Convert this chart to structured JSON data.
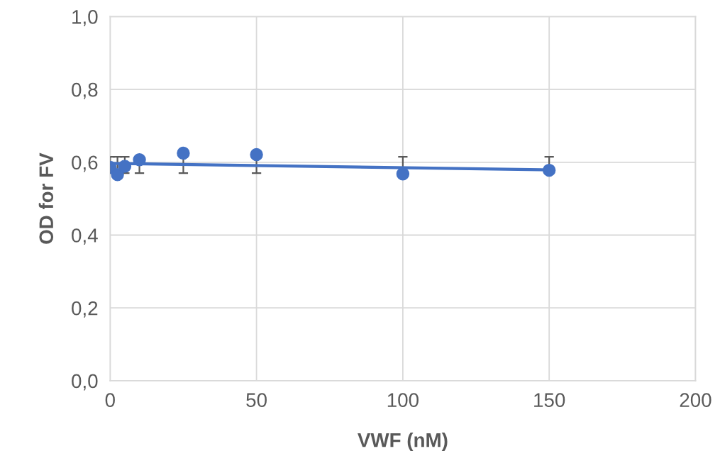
{
  "chart_data": {
    "type": "scatter",
    "xlabel": "VWF (nM)",
    "ylabel": "OD for FV",
    "xlim": [
      0,
      200
    ],
    "xticks": [
      0,
      50,
      100,
      150,
      200
    ],
    "ylim": [
      0,
      1
    ],
    "yticks": [
      {
        "value": 0,
        "label": "0,0"
      },
      {
        "value": 0.2,
        "label": "0,2"
      },
      {
        "value": 0.4,
        "label": "0,4"
      },
      {
        "value": 0.6,
        "label": "0,6"
      },
      {
        "value": 0.8,
        "label": "0,8"
      },
      {
        "value": 1,
        "label": "1,0"
      }
    ],
    "grid": true,
    "legend": false,
    "series": [
      {
        "type": "scatter",
        "marker": "circle",
        "color": "#4472c4",
        "x": [
          0,
          2.5,
          5,
          10,
          25,
          50,
          100,
          150
        ],
        "values": [
          0.586,
          0.566,
          0.589,
          0.607,
          0.625,
          0.621,
          0.568,
          0.578
        ],
        "errors": [
          [
            0.57,
            0.615
          ],
          [
            0.566,
            0.615
          ],
          [
            0.57,
            0.615
          ],
          [
            0.57,
            0.607
          ],
          [
            0.57,
            0.615
          ],
          [
            0.57,
            0.621
          ],
          [
            0.57,
            0.615
          ],
          [
            0.578,
            0.615
          ]
        ]
      },
      {
        "type": "line",
        "color": "#4472c4",
        "x": [
          0,
          150
        ],
        "values": [
          0.597,
          0.579
        ]
      }
    ]
  }
}
